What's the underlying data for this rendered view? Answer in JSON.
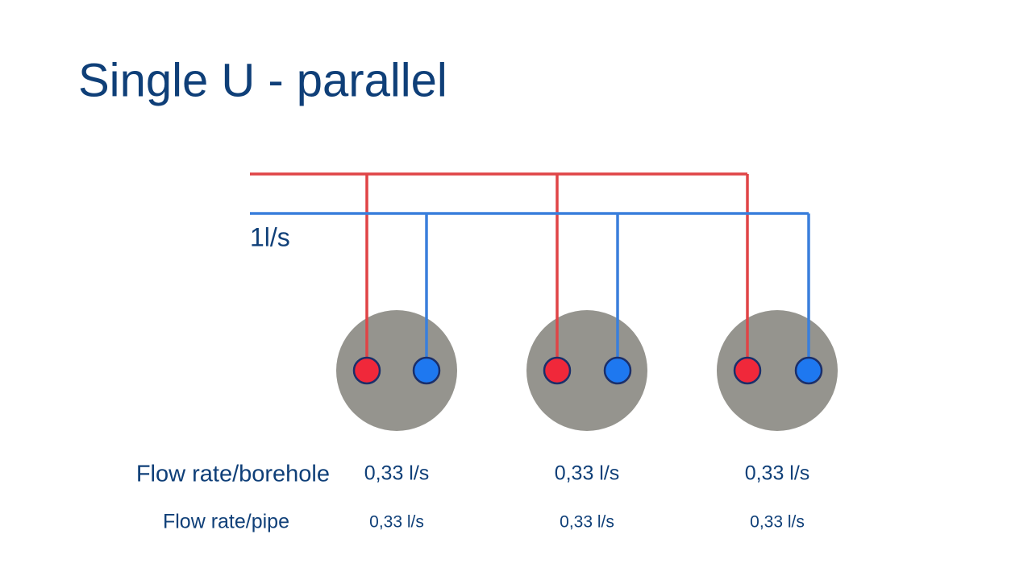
{
  "title": "Single U - parallel",
  "flow_label": "1l/s",
  "rows": [
    {
      "label": "Flow rate/borehole",
      "values": [
        "0,33 l/s",
        "0,33 l/s",
        "0,33 l/s"
      ]
    },
    {
      "label": "Flow rate/pipe",
      "values": [
        "0,33 l/s",
        "0,33 l/s",
        "0,33 l/s"
      ]
    }
  ]
}
